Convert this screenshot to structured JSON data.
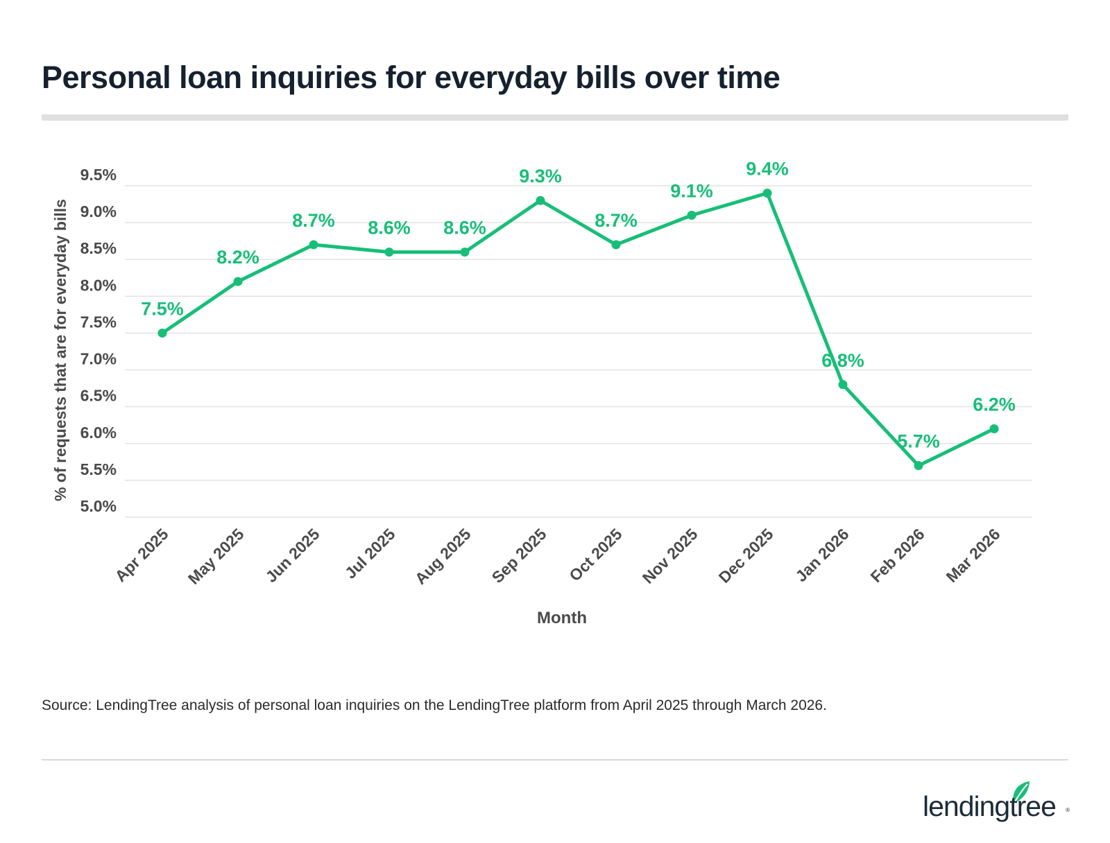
{
  "title": "Personal loan inquiries for everyday bills over time",
  "source": "Source: LendingTree analysis of personal loan inquiries on the LendingTree platform from April 2025 through March 2026.",
  "logo": {
    "text": "lendingtree",
    "reg_mark": "®",
    "icon": "leaf-icon"
  },
  "colors": {
    "line": "#17be78",
    "grid": "#e3e3e3",
    "axis_text": "#4a4a4a",
    "title": "#16212f"
  },
  "chart_data": {
    "type": "line",
    "title": "Personal loan inquiries for everyday bills over time",
    "xlabel": "Month",
    "ylabel": "% of requests that are for everyday bills",
    "categories": [
      "Apr 2025",
      "May 2025",
      "Jun 2025",
      "Jul 2025",
      "Aug 2025",
      "Sep 2025",
      "Oct 2025",
      "Nov 2025",
      "Dec 2025",
      "Jan 2026",
      "Feb 2026",
      "Mar 2026"
    ],
    "series": [
      {
        "values": [
          7.5,
          8.2,
          8.7,
          8.6,
          8.6,
          9.3,
          8.7,
          9.1,
          9.4,
          6.8,
          5.7,
          6.2
        ],
        "labels": [
          "7.5%",
          "8.2%",
          "8.7%",
          "8.6%",
          "8.6%",
          "9.3%",
          "8.7%",
          "9.1%",
          "9.4%",
          "6.8%",
          "5.7%",
          "6.2%"
        ]
      }
    ],
    "yticks": [
      5.0,
      5.5,
      6.0,
      6.5,
      7.0,
      7.5,
      8.0,
      8.5,
      9.0,
      9.5
    ],
    "ytick_labels": [
      "5.0%",
      "5.5%",
      "6.0%",
      "6.5%",
      "7.0%",
      "7.5%",
      "8.0%",
      "8.5%",
      "9.0%",
      "9.5%"
    ],
    "ylim": [
      5.0,
      9.5
    ],
    "grid": true,
    "legend": "none"
  }
}
